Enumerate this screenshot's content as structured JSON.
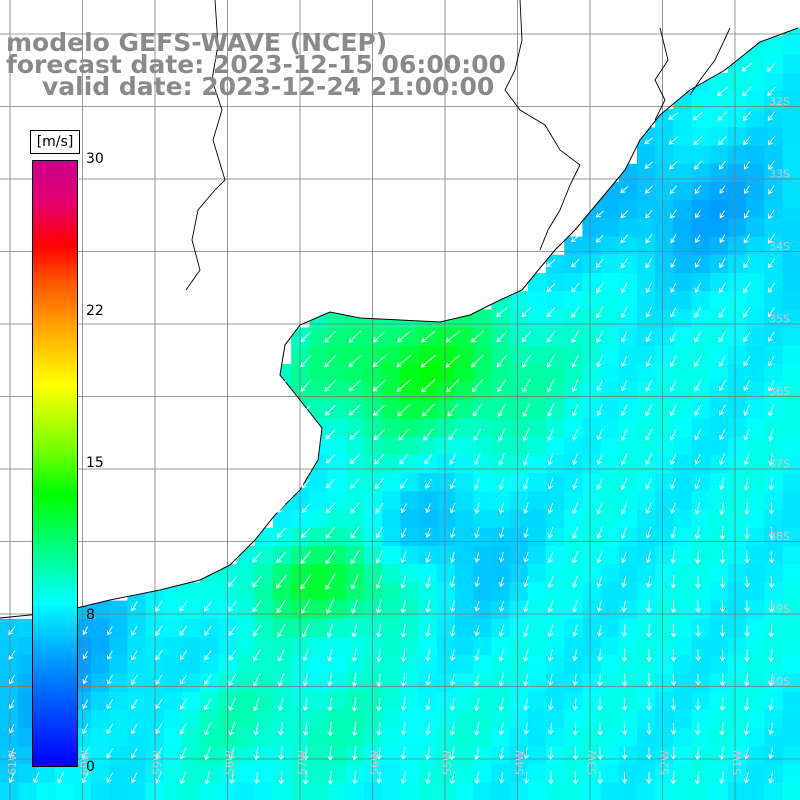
{
  "title": {
    "line1": "modelo GEFS-WAVE (NCEP)",
    "line2": "forecast date: 2023-12-15 06:00:00",
    "line3": "valid date: 2023-12-24 21:00:00"
  },
  "colorbar": {
    "units": "[m/s]",
    "ticks": [
      "30",
      "22",
      "15",
      "8",
      "0"
    ],
    "tick_values": [
      30,
      22,
      15,
      8,
      0
    ],
    "range": [
      0,
      30
    ],
    "colors": [
      "#0000ff",
      "#0066ff",
      "#00c8ff",
      "#00ffff",
      "#00ff80",
      "#00ff00",
      "#80ff00",
      "#ffff00",
      "#ffaa00",
      "#ff5500",
      "#ff0000",
      "#e6006e",
      "#c8008c"
    ]
  },
  "map": {
    "lat_labels": [
      "32S",
      "33S",
      "34S",
      "35S",
      "36S",
      "37S",
      "38S",
      "39S",
      "40S"
    ],
    "lon_labels": [
      "61W",
      "60W",
      "59W",
      "58W",
      "57W",
      "56W",
      "55W",
      "54W",
      "53W",
      "52W",
      "51W"
    ],
    "land_color": "#ffffff",
    "wind_field_note_colors": {
      "strong": "#33ff33",
      "moderate": "#00ffee",
      "weak": "#0099ff"
    }
  }
}
